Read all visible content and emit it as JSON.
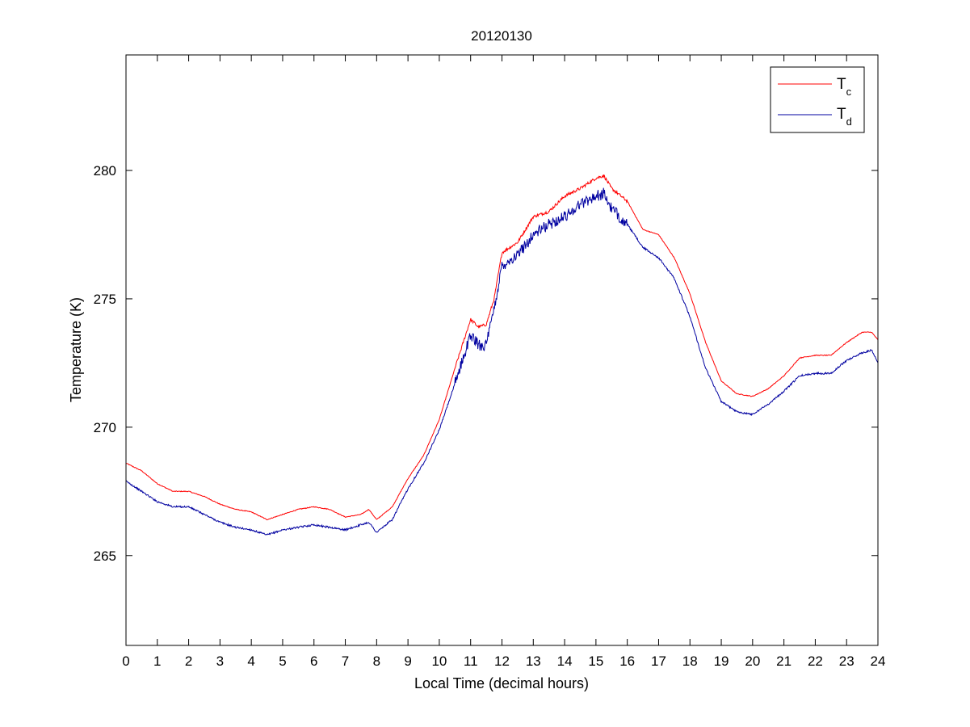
{
  "chart_data": {
    "type": "line",
    "title": "20120130",
    "xlabel": "Local Time (decimal hours)",
    "ylabel": "Temperature (K)",
    "xlim": [
      0,
      24
    ],
    "ylim": [
      261.5,
      284.5
    ],
    "x_ticks": [
      0,
      1,
      2,
      3,
      4,
      5,
      6,
      7,
      8,
      9,
      10,
      11,
      12,
      13,
      14,
      15,
      16,
      17,
      18,
      19,
      20,
      21,
      22,
      23,
      24
    ],
    "x_tick_labels": [
      "0",
      "1",
      "2",
      "3",
      "4",
      "5",
      "6",
      "7",
      "8",
      "9",
      "10",
      "11",
      "12",
      "13",
      "14",
      "15",
      "16",
      "17",
      "18",
      "19",
      "20",
      "21",
      "22",
      "23",
      "24"
    ],
    "y_ticks": [
      265,
      270,
      275,
      280
    ],
    "y_tick_labels": [
      "265",
      "270",
      "275",
      "280"
    ],
    "grid": false,
    "legend_position": "top-right",
    "series": [
      {
        "name_main": "T",
        "name_sub": "c",
        "color": "#ff0000",
        "x": [
          0,
          0.5,
          1,
          1.5,
          2,
          2.5,
          3,
          3.5,
          4,
          4.5,
          5,
          5.5,
          6,
          6.5,
          7,
          7.5,
          7.75,
          8,
          8.5,
          9,
          9.5,
          10,
          10.5,
          11,
          11.25,
          11.5,
          11.75,
          12,
          12.5,
          13,
          13.5,
          14,
          14.5,
          15,
          15.25,
          15.5,
          16,
          16.5,
          17,
          17.5,
          18,
          18.5,
          19,
          19.5,
          20,
          20.5,
          21,
          21.5,
          22,
          22.5,
          23,
          23.5,
          23.8,
          24
        ],
        "y": [
          268.6,
          268.3,
          267.8,
          267.5,
          267.5,
          267.3,
          267.0,
          266.8,
          266.7,
          266.4,
          266.6,
          266.8,
          266.9,
          266.8,
          266.5,
          266.6,
          266.8,
          266.4,
          266.9,
          268.0,
          268.9,
          270.3,
          272.3,
          274.2,
          273.9,
          274.0,
          275.0,
          276.8,
          277.2,
          278.2,
          278.4,
          279.0,
          279.3,
          279.7,
          279.8,
          279.3,
          278.8,
          277.7,
          277.5,
          276.6,
          275.2,
          273.3,
          271.8,
          271.3,
          271.2,
          271.5,
          272.0,
          272.7,
          272.8,
          272.8,
          273.3,
          273.7,
          273.7,
          273.4
        ]
      },
      {
        "name_main": "T",
        "name_sub": "d",
        "color": "#0000a0",
        "x": [
          0,
          0.5,
          1,
          1.5,
          2,
          2.5,
          3,
          3.5,
          4,
          4.5,
          5,
          5.5,
          6,
          6.5,
          7,
          7.5,
          7.75,
          8,
          8.5,
          9,
          9.5,
          10,
          10.5,
          11,
          11.25,
          11.5,
          11.75,
          12,
          12.5,
          13,
          13.5,
          14,
          14.5,
          15,
          15.25,
          15.5,
          16,
          16.5,
          17,
          17.5,
          18,
          18.5,
          19,
          19.5,
          20,
          20.5,
          21,
          21.5,
          22,
          22.5,
          23,
          23.5,
          23.8,
          24
        ],
        "y": [
          267.9,
          267.5,
          267.1,
          266.9,
          266.9,
          266.6,
          266.3,
          266.1,
          266.0,
          265.8,
          266.0,
          266.1,
          266.2,
          266.1,
          266.0,
          266.2,
          266.3,
          265.9,
          266.4,
          267.6,
          268.6,
          269.9,
          271.7,
          273.6,
          273.2,
          273.2,
          274.6,
          276.3,
          276.7,
          277.5,
          277.9,
          278.2,
          278.7,
          279.0,
          279.1,
          278.5,
          277.9,
          277.0,
          276.6,
          275.8,
          274.3,
          272.3,
          271.0,
          270.6,
          270.5,
          270.9,
          271.4,
          272.0,
          272.1,
          272.1,
          272.6,
          272.9,
          273.0,
          272.5
        ]
      }
    ]
  }
}
